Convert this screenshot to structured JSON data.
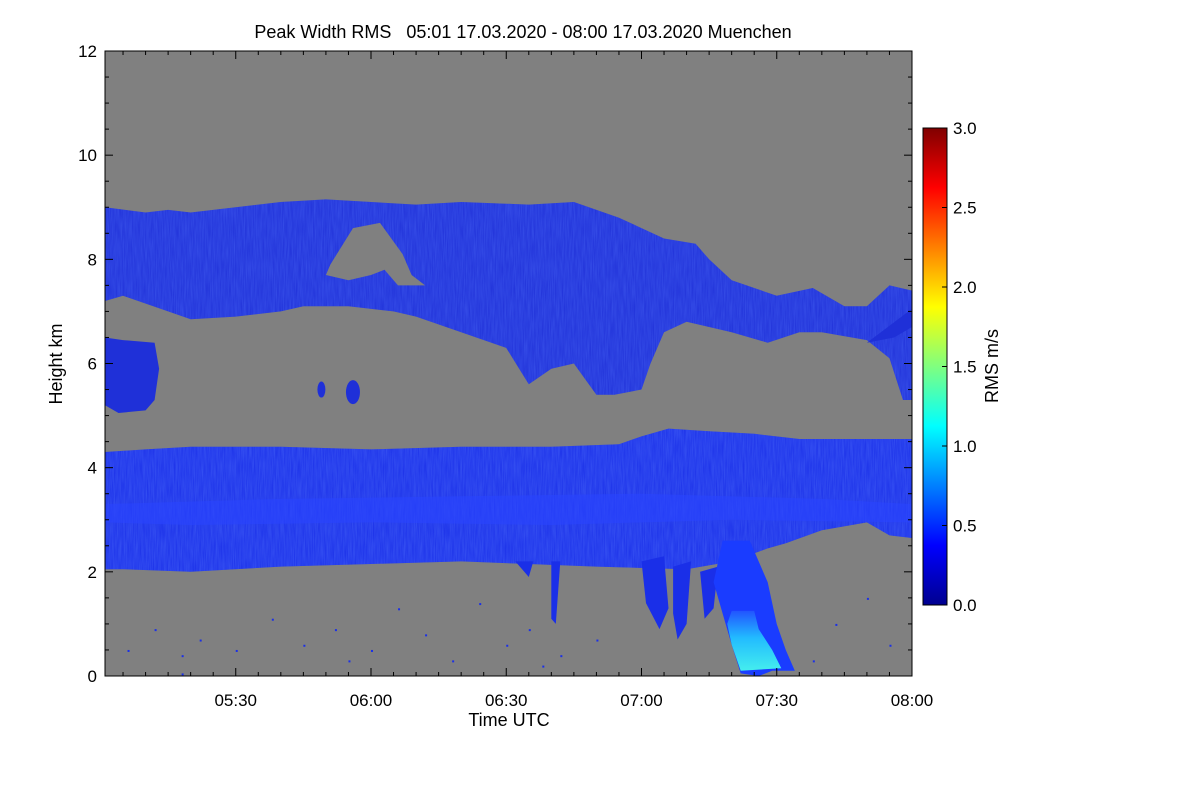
{
  "chart_data": {
    "type": "heatmap",
    "title": "Peak Width RMS   05:01 17.03.2020 - 08:00 17.03.2020 Muenchen",
    "xlabel": "Time UTC",
    "ylabel": "Height km",
    "x_range_minutes": [
      301,
      480
    ],
    "x_ticks": [
      {
        "minute": 330,
        "label": "05:30"
      },
      {
        "minute": 360,
        "label": "06:00"
      },
      {
        "minute": 390,
        "label": "06:30"
      },
      {
        "minute": 420,
        "label": "07:00"
      },
      {
        "minute": 450,
        "label": "07:30"
      },
      {
        "minute": 480,
        "label": "08:00"
      }
    ],
    "ylim": [
      0,
      12
    ],
    "y_ticks": [
      0,
      2,
      4,
      6,
      8,
      10,
      12
    ],
    "background_color": "#808080",
    "colorbar": {
      "label": "RMS m/s",
      "range": [
        0.0,
        3.0
      ],
      "ticks": [
        "0.0",
        "0.5",
        "1.0",
        "1.5",
        "2.0",
        "2.5",
        "3.0"
      ],
      "colormap": "jet"
    },
    "regions": [
      {
        "name": "lower-cloud-layer",
        "x": [
          301,
          480
        ],
        "y_bottom": [
          2.05,
          2.05,
          2.0,
          2.05,
          2.0,
          2.0,
          2.1,
          2.2,
          2.4,
          2.6,
          2.7,
          2.75
        ],
        "y_top": [
          4.3,
          4.35,
          4.4,
          4.4,
          4.4,
          4.4,
          4.45,
          4.7,
          4.75,
          4.6,
          4.55,
          4.55
        ],
        "value": 0.3
      },
      {
        "name": "upper-cloud-layer",
        "x": [
          301,
          480
        ],
        "value": 0.25
      },
      {
        "name": "mid-cloud-patch",
        "x": [
          301,
          313
        ],
        "y": [
          5.1,
          6.5
        ],
        "value": 0.25
      },
      {
        "name": "precipitation-shaft",
        "x": [
          436,
          452
        ],
        "y": [
          0,
          2.5
        ],
        "value": 1.1
      }
    ]
  }
}
